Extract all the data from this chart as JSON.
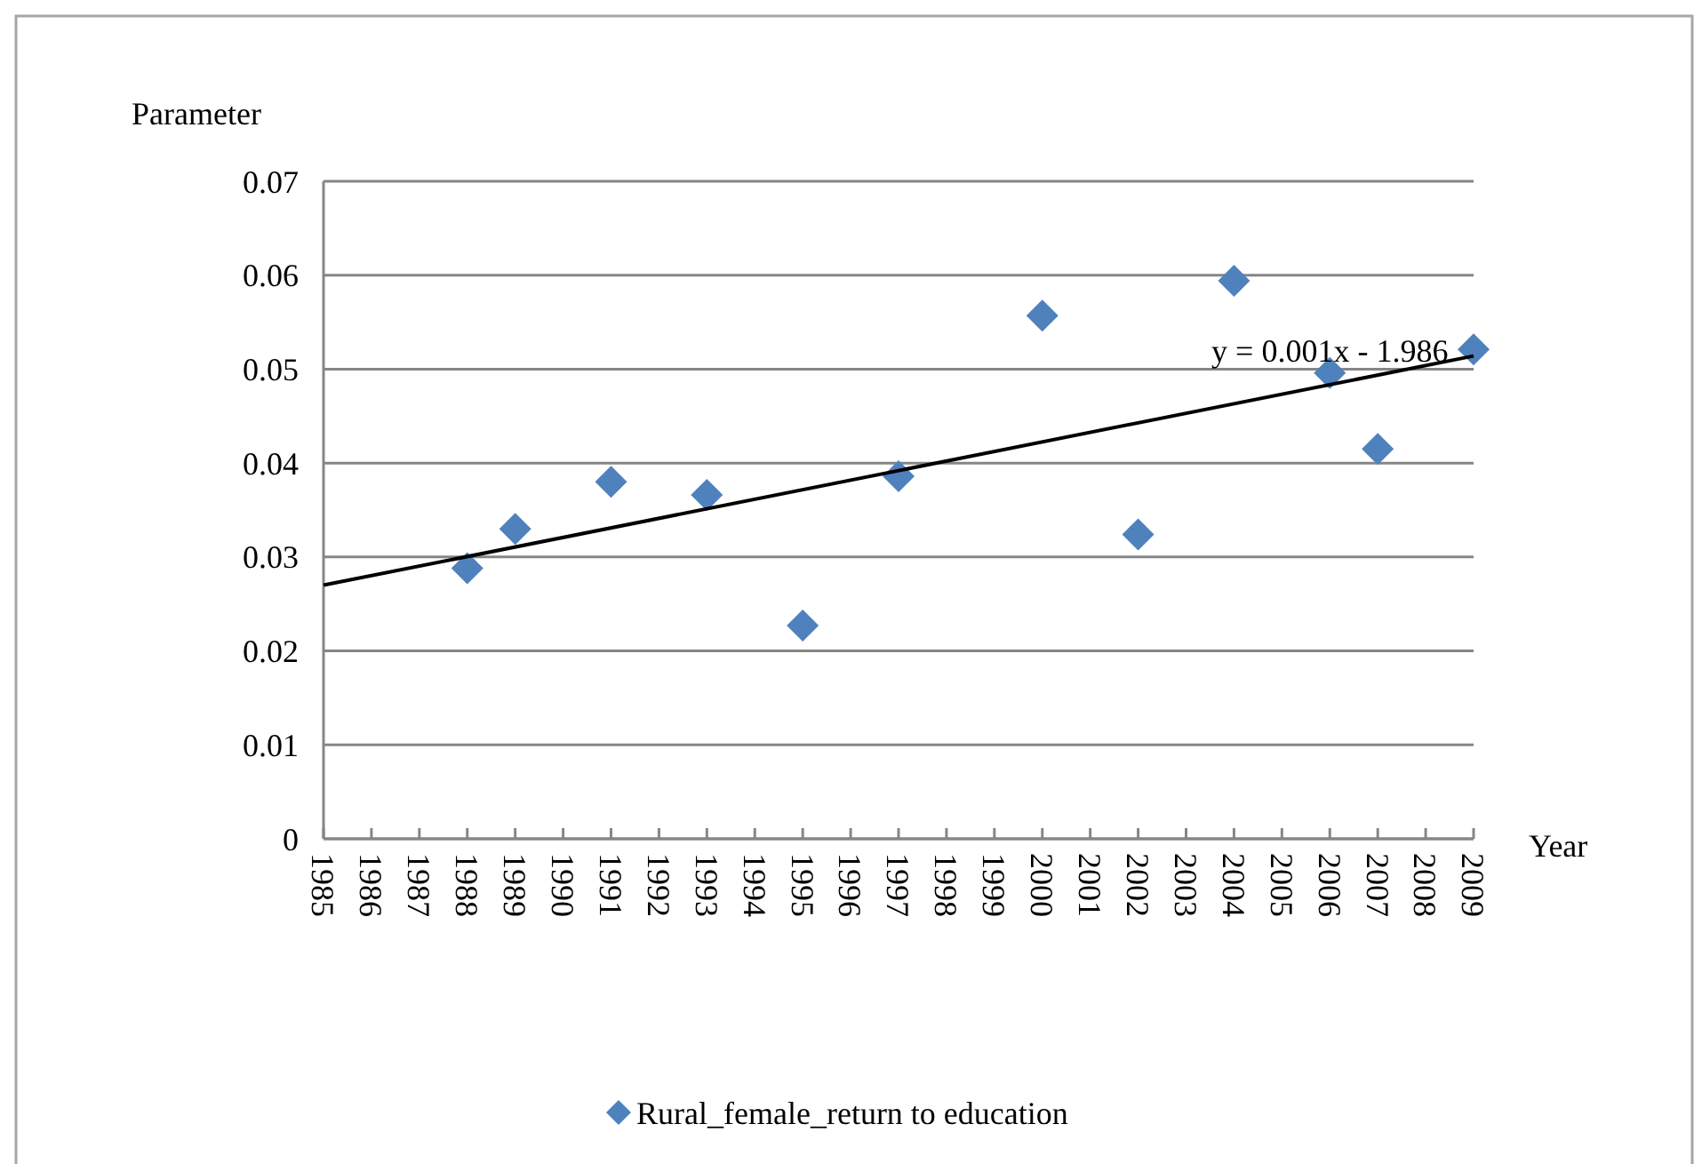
{
  "chart_data": {
    "type": "scatter",
    "xlabel": "Year",
    "ylabel": "Parameter",
    "x": [
      1988,
      1989,
      1991,
      1993,
      1995,
      1997,
      2000,
      2002,
      2004,
      2006,
      2007,
      2009
    ],
    "series": [
      {
        "name": "Rural_female_return to education",
        "color": "#4f81bd",
        "marker": "diamond",
        "values": [
          0.0288,
          0.033,
          0.038,
          0.0366,
          0.0227,
          0.0386,
          0.0557,
          0.0324,
          0.0594,
          0.0496,
          0.0415,
          0.0521
        ]
      },
      {
        "type": "line",
        "color": "#000000",
        "x": [
          1985,
          2009
        ],
        "values": [
          0.027,
          0.0514
        ]
      }
    ],
    "annotations": [
      {
        "text": "y = 0.001x - 1.986",
        "x": 2006,
        "y": 0.0514
      }
    ],
    "xlim": [
      1985,
      2009
    ],
    "xticks": [
      1985,
      1986,
      1987,
      1988,
      1989,
      1990,
      1991,
      1992,
      1993,
      1994,
      1995,
      1996,
      1997,
      1998,
      1999,
      2000,
      2001,
      2002,
      2003,
      2004,
      2005,
      2006,
      2007,
      2008,
      2009
    ],
    "ylim": [
      0,
      0.07
    ],
    "yticks": [
      {
        "value": 0,
        "label": "0"
      },
      0.01,
      0.02,
      0.03,
      0.04,
      0.05,
      0.06,
      0.07
    ],
    "grid": "y",
    "legend": "bottom"
  }
}
